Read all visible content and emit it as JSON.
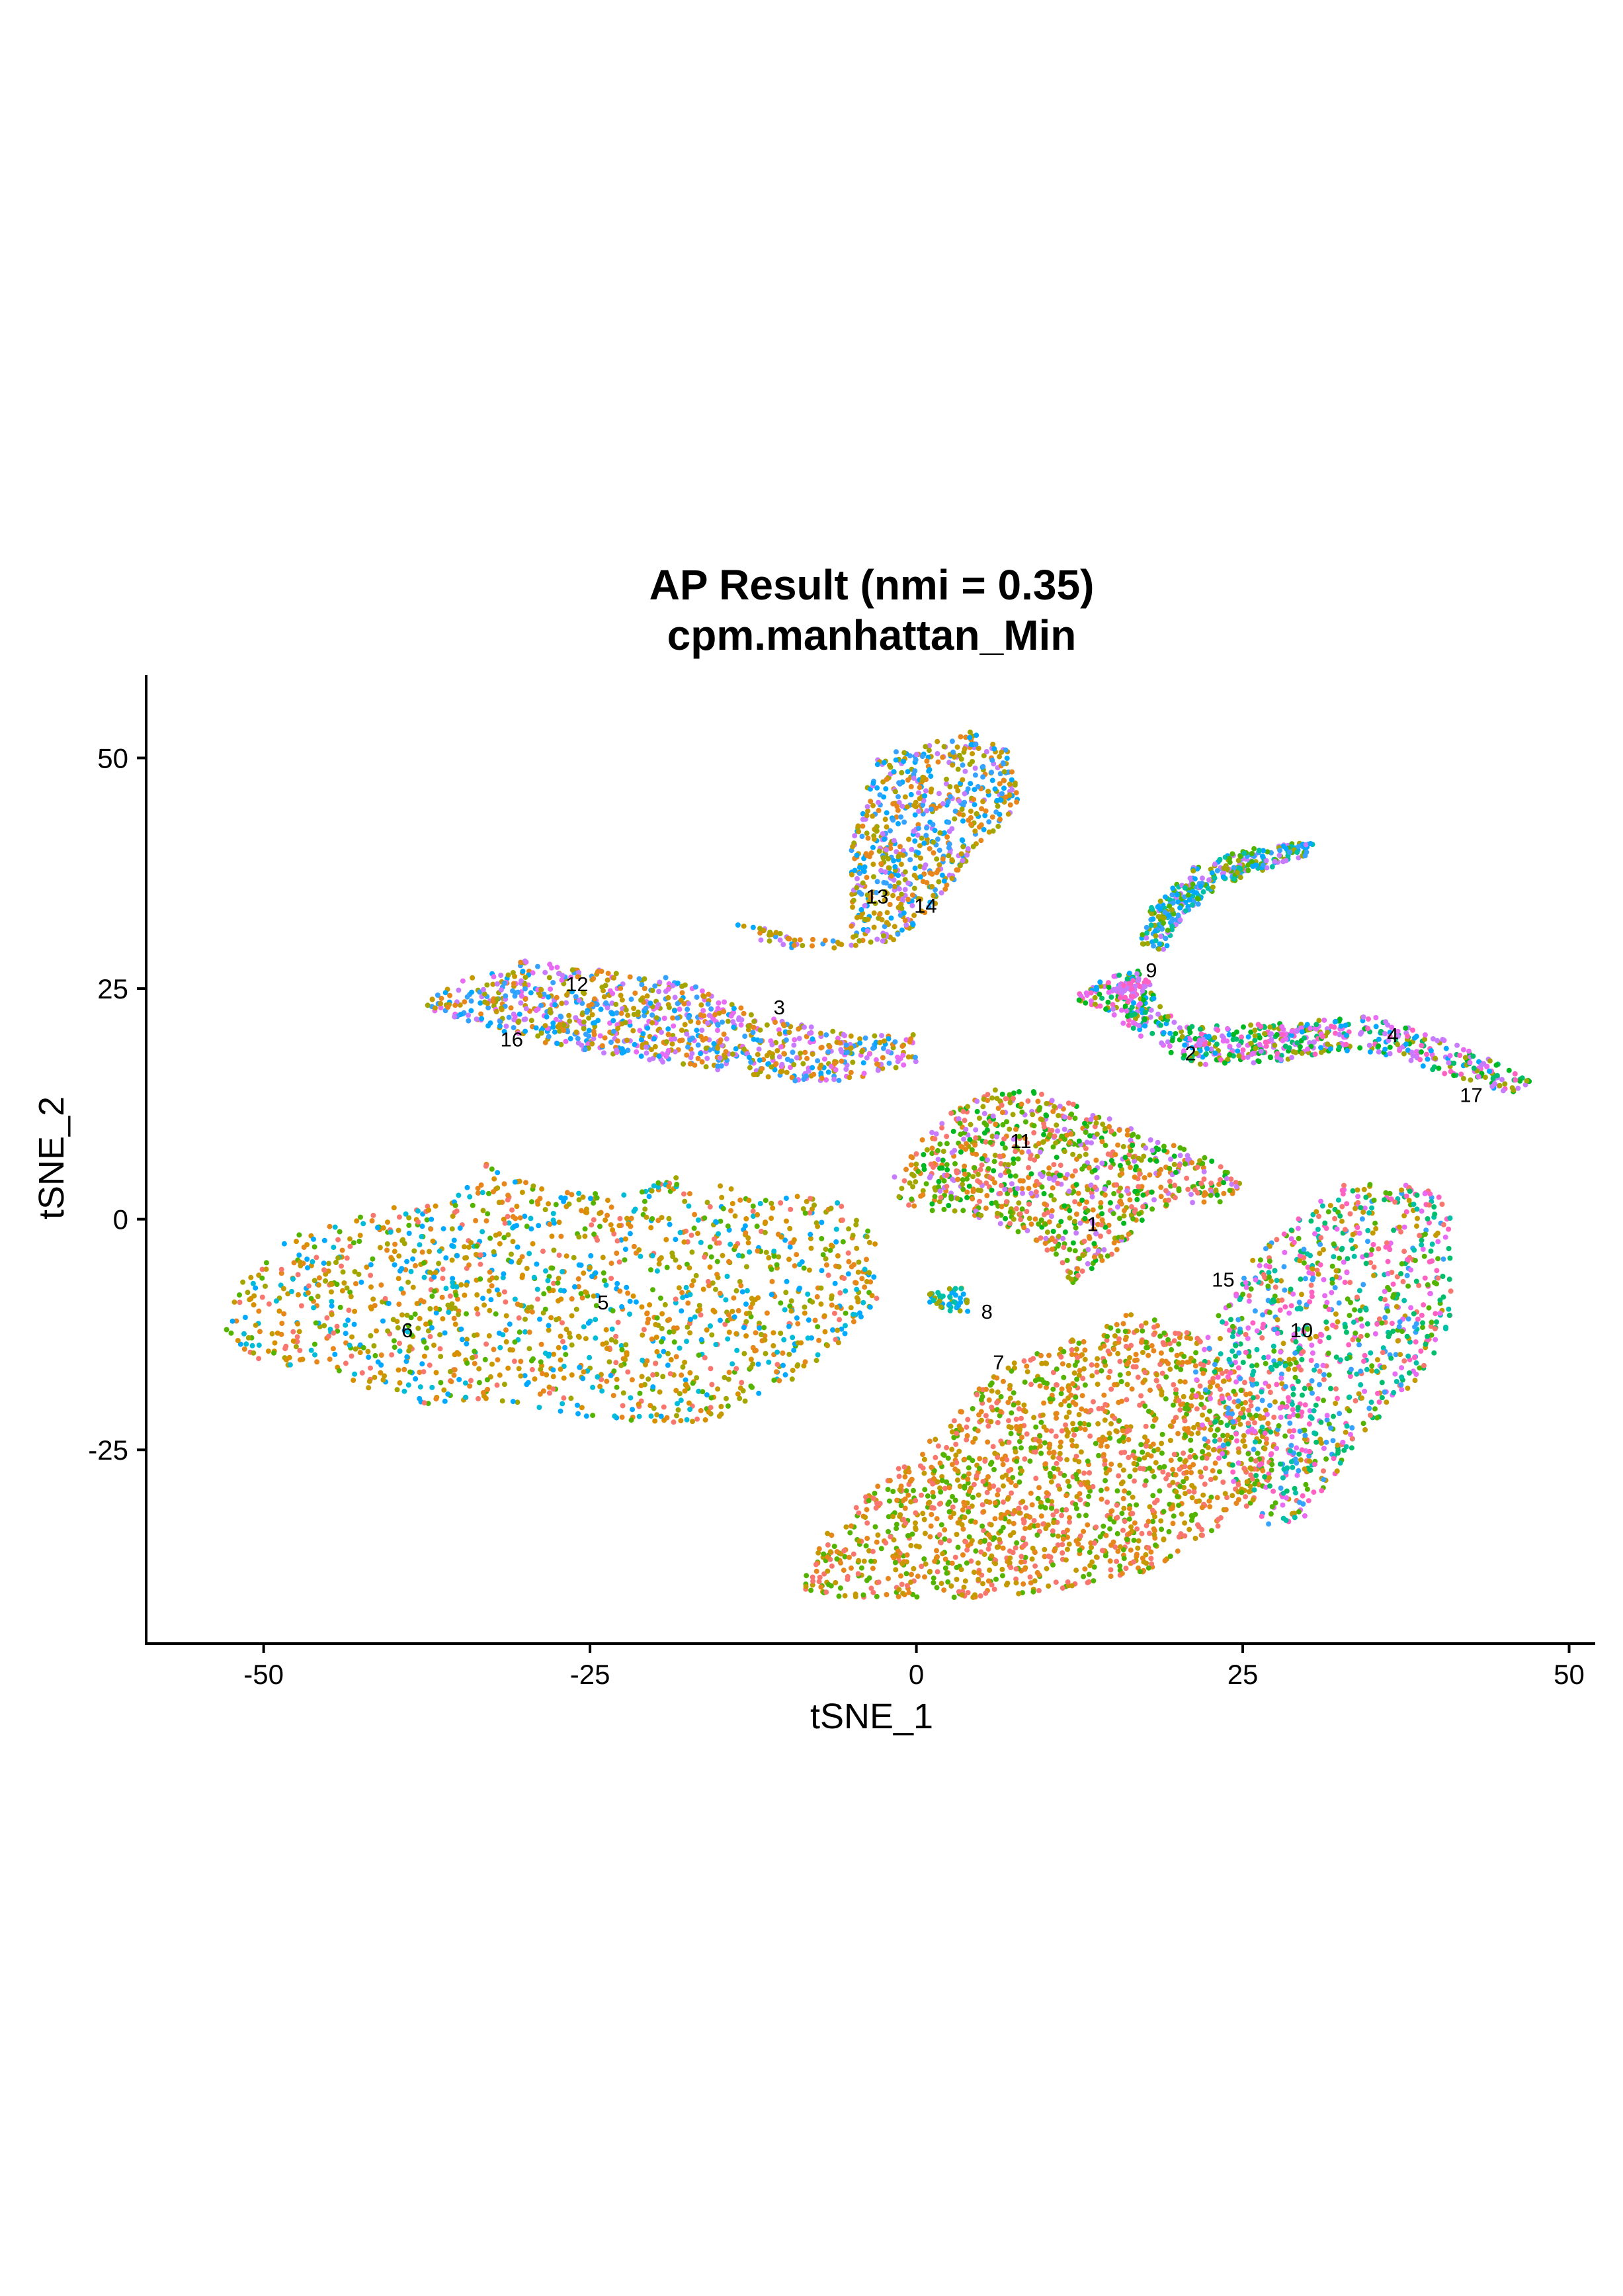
{
  "chart_data": {
    "type": "scatter",
    "title": "AP Result (nmi = 0.35)",
    "subtitle": "cpm.manhattan_Min",
    "xlabel": "tSNE_1",
    "ylabel": "tSNE_2",
    "xlim": [
      -59,
      52
    ],
    "ylim": [
      -46,
      59
    ],
    "x_ticks": [
      -50,
      -25,
      0,
      25,
      50
    ],
    "x_tick_labels": [
      "-50",
      "-25",
      "0",
      "25",
      "50"
    ],
    "y_ticks": [
      -25,
      0,
      25,
      50
    ],
    "y_tick_labels": [
      "-25",
      "0",
      "25",
      "50"
    ],
    "grid": false,
    "legend": "none",
    "palette": [
      "#F8766D",
      "#E6861B",
      "#C59A00",
      "#A3A500",
      "#53B400",
      "#00B81F",
      "#00BE6C",
      "#00C1A7",
      "#00BCD8",
      "#00A9FF",
      "#35A2FF",
      "#9590FF",
      "#C77CFF",
      "#E76BF3",
      "#FF61C3",
      "#FF6B94",
      "#D89000"
    ],
    "cluster_labels": [
      {
        "label": "1",
        "x": 13.5,
        "y": -0.5
      },
      {
        "label": "2",
        "x": 21,
        "y": 18
      },
      {
        "label": "3",
        "x": -10.5,
        "y": 23
      },
      {
        "label": "4",
        "x": 36.5,
        "y": 20
      },
      {
        "label": "5",
        "x": -24,
        "y": -9
      },
      {
        "label": "6",
        "x": -39,
        "y": -12
      },
      {
        "label": "7",
        "x": 6.3,
        "y": -15.5
      },
      {
        "label": "8",
        "x": 5.4,
        "y": -10
      },
      {
        "label": "9",
        "x": 18,
        "y": 27
      },
      {
        "label": "10",
        "x": 29.5,
        "y": -12
      },
      {
        "label": "11",
        "x": 8,
        "y": 8.5
      },
      {
        "label": "12",
        "x": -26,
        "y": 25.5
      },
      {
        "label": "13",
        "x": -3,
        "y": 35
      },
      {
        "label": "14",
        "x": 0.7,
        "y": 34
      },
      {
        "label": "15",
        "x": 23.5,
        "y": -6.5
      },
      {
        "label": "16",
        "x": -31,
        "y": 19.5
      },
      {
        "label": "17",
        "x": 42.5,
        "y": 13.5
      }
    ],
    "point_groups": [
      {
        "name": "left-lower-island-west",
        "polygon": [
          [
            -53.5,
            -12
          ],
          [
            -52,
            -7
          ],
          [
            -48,
            -2
          ],
          [
            -42,
            1
          ],
          [
            -36,
            2
          ],
          [
            -33,
            6
          ],
          [
            -28,
            3
          ],
          [
            -22,
            3
          ],
          [
            -18,
            5
          ],
          [
            -12,
            3
          ],
          [
            -6,
            2
          ],
          [
            -3,
            -2
          ],
          [
            -3,
            -9
          ],
          [
            -7,
            -15
          ],
          [
            -11,
            -19
          ],
          [
            -16,
            -22
          ],
          [
            -22,
            -22
          ],
          [
            -27,
            -21
          ],
          [
            -32,
            -20
          ],
          [
            -38,
            -20
          ],
          [
            -45,
            -17
          ],
          [
            -51,
            -15
          ]
        ],
        "count": 1500,
        "colors": [
          1,
          9,
          16,
          2,
          0,
          8,
          4,
          3
        ]
      },
      {
        "name": "left-upper-band",
        "polygon": [
          [
            -38,
            23
          ],
          [
            -35,
            26
          ],
          [
            -30,
            28
          ],
          [
            -24,
            27
          ],
          [
            -18,
            26
          ],
          [
            -12,
            22
          ],
          [
            -5,
            20
          ],
          [
            0,
            20
          ],
          [
            0,
            17
          ],
          [
            -5,
            15
          ],
          [
            -10,
            15
          ],
          [
            -15,
            16
          ],
          [
            -20,
            17
          ],
          [
            -28,
            19
          ],
          [
            -34,
            21
          ]
        ],
        "count": 900,
        "colors": [
          2,
          12,
          9,
          13,
          3,
          10,
          1
        ]
      },
      {
        "name": "top-center-cluster",
        "polygon": [
          [
            -5,
            30
          ],
          [
            -5,
            40
          ],
          [
            -4,
            46
          ],
          [
            -3,
            50
          ],
          [
            1,
            52
          ],
          [
            4,
            53
          ],
          [
            7,
            51
          ],
          [
            8,
            45
          ],
          [
            6,
            42
          ],
          [
            4,
            39
          ],
          [
            2,
            35
          ],
          [
            0,
            32
          ],
          [
            -2,
            30
          ],
          [
            -8,
            29
          ],
          [
            -12,
            30
          ],
          [
            -14,
            32
          ]
        ],
        "count": 700,
        "colors": [
          2,
          9,
          12,
          10,
          3,
          1
        ]
      },
      {
        "name": "right-upper-arc",
        "polygon": [
          [
            17,
            30
          ],
          [
            18,
            34
          ],
          [
            21,
            38
          ],
          [
            25,
            40
          ],
          [
            30,
            41
          ],
          [
            31,
            40
          ],
          [
            27,
            38
          ],
          [
            23,
            36
          ],
          [
            20,
            32
          ],
          [
            19,
            29
          ]
        ],
        "count": 350,
        "colors": [
          9,
          12,
          4,
          3,
          7,
          10
        ]
      },
      {
        "name": "right-middle-band",
        "polygon": [
          [
            12,
            24
          ],
          [
            14,
            26
          ],
          [
            17,
            27
          ],
          [
            20,
            21
          ],
          [
            25,
            21
          ],
          [
            30,
            21.5
          ],
          [
            35,
            22
          ],
          [
            38,
            21
          ],
          [
            43,
            18
          ],
          [
            47,
            15
          ],
          [
            46,
            13.5
          ],
          [
            42,
            15
          ],
          [
            37,
            17.5
          ],
          [
            32,
            18
          ],
          [
            27,
            17
          ],
          [
            22,
            16.5
          ],
          [
            18,
            19
          ],
          [
            15,
            22
          ]
        ],
        "count": 650,
        "colors": [
          6,
          12,
          5,
          13,
          9,
          3,
          14
        ]
      },
      {
        "name": "center-middle-cluster",
        "polygon": [
          [
            -2,
            4
          ],
          [
            0,
            8
          ],
          [
            2,
            11
          ],
          [
            5,
            14
          ],
          [
            9,
            14
          ],
          [
            13,
            12
          ],
          [
            18,
            9
          ],
          [
            22,
            7
          ],
          [
            25,
            4
          ],
          [
            24,
            2
          ],
          [
            18,
            1
          ],
          [
            15,
            -4
          ],
          [
            12,
            -7
          ],
          [
            9,
            -2
          ],
          [
            5,
            0
          ],
          [
            1,
            1
          ],
          [
            -2,
            2
          ]
        ],
        "count": 900,
        "colors": [
          0,
          4,
          1,
          5,
          12,
          3
        ]
      },
      {
        "name": "bottom-center-cluster",
        "polygon": [
          [
            -9,
            -40
          ],
          [
            -7,
            -34
          ],
          [
            -3,
            -29
          ],
          [
            1,
            -24
          ],
          [
            5,
            -18
          ],
          [
            8,
            -15
          ],
          [
            12,
            -13
          ],
          [
            16,
            -10
          ],
          [
            20,
            -11
          ],
          [
            24,
            -16
          ],
          [
            28,
            -22
          ],
          [
            27,
            -29
          ],
          [
            23,
            -34
          ],
          [
            18,
            -38
          ],
          [
            12,
            -40
          ],
          [
            5,
            -41
          ],
          [
            -2,
            -41
          ],
          [
            -6,
            -41
          ]
        ],
        "count": 1650,
        "colors": [
          0,
          1,
          4,
          2
        ]
      },
      {
        "name": "right-lower-cluster",
        "polygon": [
          [
            21,
            -16
          ],
          [
            23,
            -10
          ],
          [
            26,
            -4
          ],
          [
            29,
            0
          ],
          [
            33,
            4
          ],
          [
            38,
            4
          ],
          [
            41,
            2
          ],
          [
            41,
            -4
          ],
          [
            41,
            -12
          ],
          [
            38,
            -18
          ],
          [
            34,
            -24
          ],
          [
            30,
            -32
          ],
          [
            27,
            -34
          ],
          [
            25,
            -30
          ],
          [
            22,
            -24
          ]
        ],
        "count": 1000,
        "colors": [
          7,
          14,
          0,
          6,
          4,
          2,
          13,
          10
        ]
      },
      {
        "name": "small-cluster-8",
        "polygon": [
          [
            1,
            -8
          ],
          [
            3,
            -7
          ],
          [
            4,
            -8
          ],
          [
            4,
            -10
          ],
          [
            2,
            -10
          ],
          [
            1,
            -9
          ]
        ],
        "count": 45,
        "colors": [
          7,
          9,
          3
        ]
      },
      {
        "name": "small-cluster-9",
        "polygon": [
          [
            15,
            25
          ],
          [
            17,
            26.5
          ],
          [
            18,
            25.5
          ],
          [
            17,
            24
          ],
          [
            15.5,
            24
          ]
        ],
        "count": 45,
        "colors": [
          14,
          12
        ]
      }
    ]
  }
}
